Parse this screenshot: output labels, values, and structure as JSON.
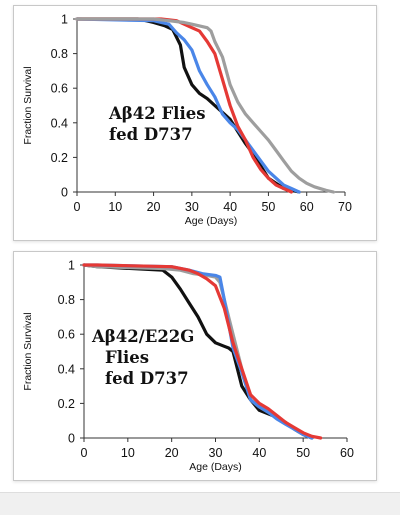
{
  "chart_data": [
    {
      "type": "line",
      "annotation": [
        "Aβ42 Flies",
        "fed D737"
      ],
      "xlabel": "Age (Days)",
      "ylabel": "Fraction Survival",
      "xlim": [
        0,
        70
      ],
      "ylim": [
        0,
        1
      ],
      "xticks": [
        0,
        10,
        20,
        30,
        40,
        50,
        60,
        70
      ],
      "yticks": [
        0,
        0.2,
        0.4,
        0.6,
        0.8,
        1
      ],
      "ytick_labels": [
        "0",
        "0.2",
        "0.4",
        "0.6",
        "0.8",
        "1"
      ],
      "grid": false,
      "legend": "none",
      "series": [
        {
          "color": "#111111",
          "x": [
            0,
            16,
            20,
            23,
            25,
            27,
            28,
            30,
            32,
            34,
            36,
            38,
            40,
            42,
            44,
            46,
            48,
            50,
            52,
            54,
            56,
            58
          ],
          "y": [
            1,
            1,
            0.98,
            0.96,
            0.94,
            0.85,
            0.72,
            0.62,
            0.57,
            0.54,
            0.5,
            0.46,
            0.42,
            0.35,
            0.28,
            0.22,
            0.15,
            0.08,
            0.05,
            0.02,
            0.01,
            0
          ]
        },
        {
          "color": "#4a86e8",
          "x": [
            0,
            20,
            24,
            26,
            28,
            30,
            32,
            34,
            36,
            38,
            40,
            42,
            44,
            46,
            48,
            50,
            52,
            54,
            56,
            58
          ],
          "y": [
            1,
            0.99,
            0.97,
            0.92,
            0.88,
            0.82,
            0.7,
            0.62,
            0.55,
            0.45,
            0.4,
            0.36,
            0.3,
            0.24,
            0.18,
            0.12,
            0.08,
            0.04,
            0.02,
            0
          ]
        },
        {
          "color": "#e53935",
          "x": [
            0,
            22,
            26,
            28,
            30,
            32,
            34,
            36,
            38,
            40,
            42,
            44,
            46,
            48,
            50,
            52,
            54,
            56
          ],
          "y": [
            1,
            1,
            0.99,
            0.97,
            0.95,
            0.93,
            0.87,
            0.8,
            0.65,
            0.5,
            0.38,
            0.3,
            0.2,
            0.13,
            0.08,
            0.04,
            0.02,
            0
          ]
        },
        {
          "color": "#9e9e9e",
          "x": [
            0,
            20,
            24,
            28,
            30,
            32,
            34,
            35,
            36,
            38,
            40,
            42,
            44,
            46,
            48,
            50,
            52,
            54,
            56,
            58,
            60,
            62,
            65,
            67
          ],
          "y": [
            1,
            1,
            0.99,
            0.98,
            0.97,
            0.96,
            0.95,
            0.93,
            0.87,
            0.78,
            0.62,
            0.52,
            0.45,
            0.4,
            0.35,
            0.3,
            0.24,
            0.18,
            0.12,
            0.08,
            0.05,
            0.03,
            0.01,
            0
          ]
        }
      ]
    },
    {
      "type": "line",
      "annotation": [
        "Aβ42/E22G",
        "Flies",
        "fed D737"
      ],
      "xlabel": "Age (Days)",
      "ylabel": "Fraction Survival",
      "xlim": [
        0,
        60
      ],
      "ylim": [
        0,
        1
      ],
      "xticks": [
        0,
        10,
        20,
        30,
        40,
        50,
        60
      ],
      "yticks": [
        0,
        0.2,
        0.4,
        0.6,
        0.8,
        1
      ],
      "ytick_labels": [
        "0",
        "0.2",
        "0.4",
        "0.6",
        "0.8",
        "1"
      ],
      "grid": false,
      "legend": "none",
      "series": [
        {
          "color": "#111111",
          "x": [
            0,
            3,
            18,
            20,
            22,
            24,
            26,
            28,
            30,
            32,
            33,
            34,
            36,
            38,
            40,
            42,
            44,
            46,
            48,
            50,
            52
          ],
          "y": [
            1,
            0.99,
            0.97,
            0.93,
            0.86,
            0.78,
            0.7,
            0.6,
            0.55,
            0.53,
            0.52,
            0.5,
            0.3,
            0.22,
            0.16,
            0.14,
            0.12,
            0.09,
            0.05,
            0.02,
            0
          ]
        },
        {
          "color": "#9e9e9e",
          "x": [
            0,
            3,
            18,
            22,
            25,
            28,
            30,
            31,
            32,
            34,
            36,
            38,
            40,
            42,
            44,
            46,
            48,
            50,
            52
          ],
          "y": [
            1,
            0.99,
            0.98,
            0.97,
            0.95,
            0.94,
            0.93,
            0.9,
            0.8,
            0.6,
            0.4,
            0.22,
            0.18,
            0.15,
            0.12,
            0.09,
            0.05,
            0.02,
            0
          ]
        },
        {
          "color": "#4a86e8",
          "x": [
            0,
            3,
            20,
            24,
            27,
            30,
            31,
            32,
            34,
            36,
            38,
            40,
            42,
            44,
            46,
            48,
            50,
            52
          ],
          "y": [
            1,
            1,
            0.99,
            0.97,
            0.95,
            0.94,
            0.93,
            0.8,
            0.52,
            0.38,
            0.22,
            0.18,
            0.15,
            0.11,
            0.08,
            0.05,
            0.02,
            0
          ]
        },
        {
          "color": "#e53935",
          "x": [
            0,
            3,
            20,
            24,
            26,
            28,
            30,
            32,
            34,
            36,
            38,
            40,
            42,
            44,
            46,
            48,
            50,
            52,
            54
          ],
          "y": [
            1,
            1,
            0.99,
            0.97,
            0.95,
            0.92,
            0.88,
            0.75,
            0.55,
            0.4,
            0.25,
            0.2,
            0.17,
            0.13,
            0.09,
            0.06,
            0.03,
            0.01,
            0
          ]
        }
      ]
    }
  ]
}
